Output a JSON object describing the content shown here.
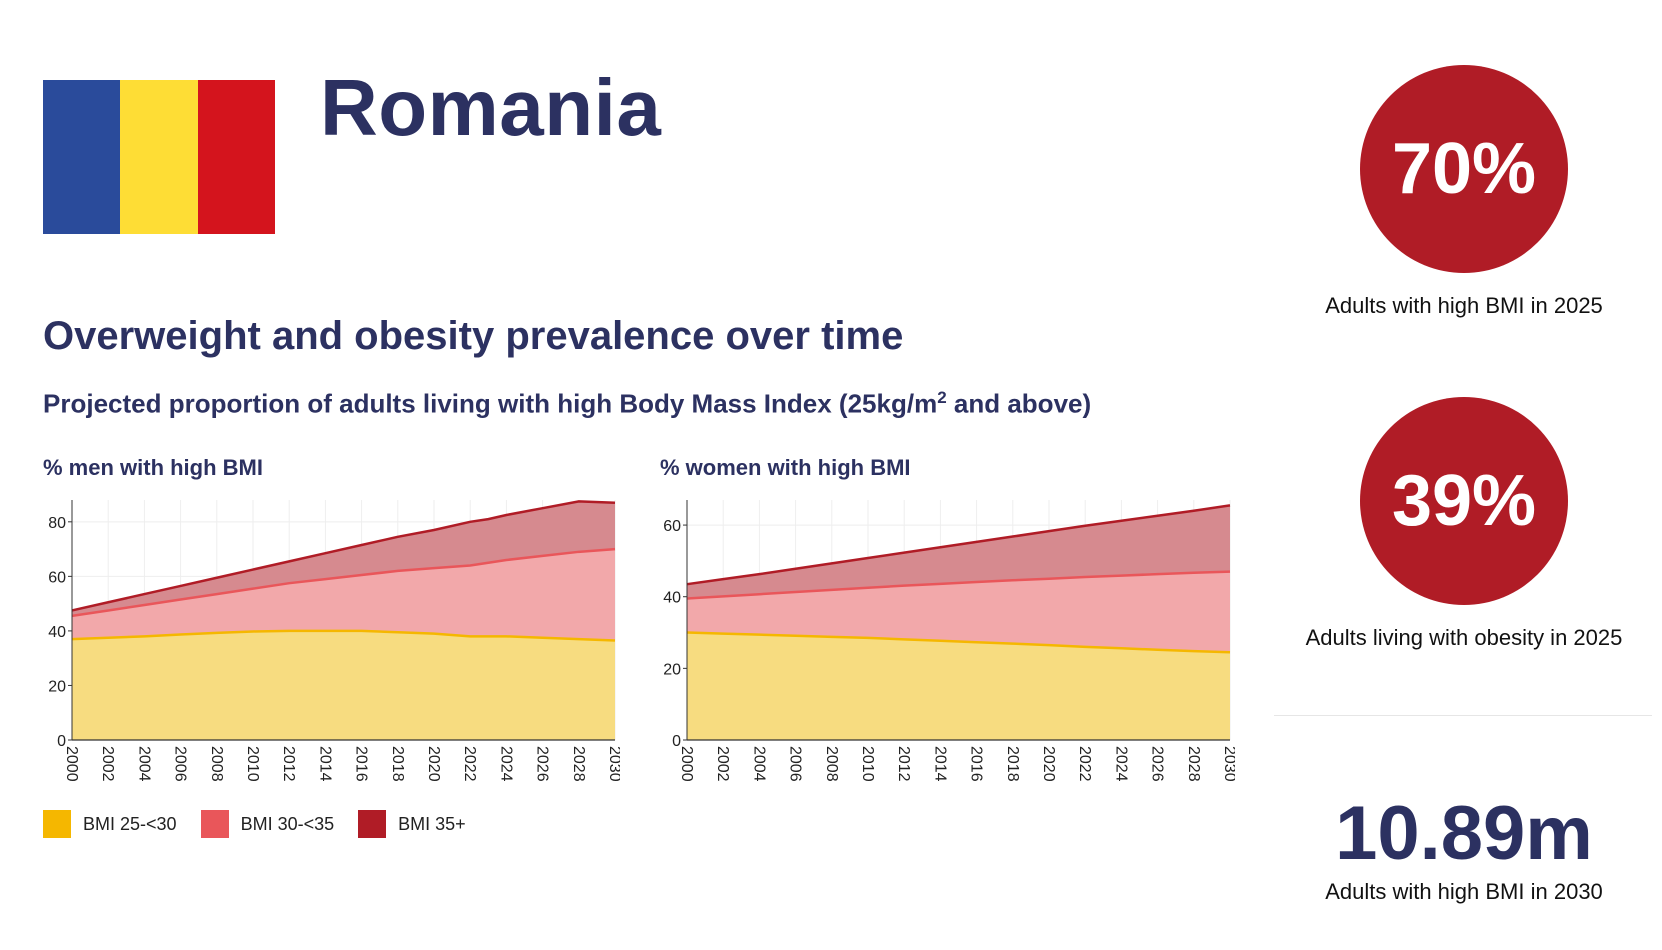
{
  "country": "Romania",
  "flag_colors": [
    "#2a4b9b",
    "#fedd35",
    "#d4141d"
  ],
  "section_title": "Overweight and obesity prevalence over time",
  "subtitle_before_sup": "Projected proportion of adults living with high Body Mass Index (25kg/m",
  "subtitle_sup": "2",
  "subtitle_after_sup": " and above)",
  "legend": [
    {
      "label": "BMI 25-<30",
      "color": "#f5b700"
    },
    {
      "label": "BMI 30-<35",
      "color": "#e9565a"
    },
    {
      "label": "BMI 35+",
      "color": "#b01c26"
    }
  ],
  "stats": [
    {
      "value": "70%",
      "caption": "Adults with high BMI in 2025",
      "color": "#b01c26"
    },
    {
      "value": "39%",
      "caption": "Adults living with obesity in 2025",
      "color": "#b01c26"
    },
    {
      "value": "10.89m",
      "caption": "Adults with high BMI in 2030"
    }
  ],
  "chart_data": [
    {
      "type": "area",
      "title": "% men with high BMI",
      "x": [
        2000,
        2002,
        2004,
        2006,
        2008,
        2010,
        2012,
        2014,
        2016,
        2018,
        2020,
        2022,
        2023,
        2024,
        2026,
        2028,
        2030
      ],
      "xticks": [
        "2000",
        "2002",
        "2004",
        "2006",
        "2008",
        "2010",
        "2012",
        "2014",
        "2016",
        "2018",
        "2020",
        "2022",
        "2024",
        "2026",
        "2028",
        "2030"
      ],
      "ylim": [
        0,
        88
      ],
      "yticks": [
        0,
        20,
        40,
        60,
        80
      ],
      "stacked_series": [
        {
          "name": "BMI 25-<30",
          "values": [
            37,
            37.5,
            38,
            38.7,
            39.3,
            39.8,
            40,
            40,
            40,
            39.5,
            39,
            38,
            38,
            38,
            37.5,
            37,
            36.5
          ]
        },
        {
          "name": "BMI 30-<35",
          "values": [
            45.5,
            47.5,
            49.5,
            51.5,
            53.5,
            55.5,
            57.5,
            59,
            60.5,
            62,
            63,
            64,
            65,
            66,
            67.5,
            69,
            70
          ]
        },
        {
          "name": "BMI 35+",
          "values": [
            47.5,
            50.5,
            53.5,
            56.5,
            59.5,
            62.5,
            65.5,
            68.5,
            71.5,
            74.5,
            77,
            80,
            81,
            82.5,
            85,
            87.5,
            87
          ]
        }
      ]
    },
    {
      "type": "area",
      "title": "% women with high BMI",
      "x": [
        2000,
        2002,
        2004,
        2006,
        2008,
        2010,
        2012,
        2014,
        2016,
        2018,
        2020,
        2022,
        2024,
        2026,
        2028,
        2030
      ],
      "xticks": [
        "2000",
        "2002",
        "2004",
        "2006",
        "2008",
        "2010",
        "2012",
        "2014",
        "2016",
        "2018",
        "2020",
        "2022",
        "2024",
        "2026",
        "2028",
        "2030"
      ],
      "ylim": [
        0,
        67
      ],
      "yticks": [
        0,
        20,
        40,
        60
      ],
      "stacked_series": [
        {
          "name": "BMI 25-<30",
          "values": [
            30,
            29.7,
            29.4,
            29.1,
            28.8,
            28.5,
            28.1,
            27.7,
            27.3,
            26.9,
            26.5,
            26,
            25.6,
            25.2,
            24.8,
            24.5
          ]
        },
        {
          "name": "BMI 30-<35",
          "values": [
            39.5,
            40.1,
            40.7,
            41.3,
            41.9,
            42.5,
            43.1,
            43.6,
            44.1,
            44.6,
            45,
            45.5,
            45.9,
            46.3,
            46.7,
            47
          ]
        },
        {
          "name": "BMI 35+",
          "values": [
            43.5,
            44.9,
            46.3,
            47.8,
            49.3,
            50.8,
            52.3,
            53.8,
            55.3,
            56.8,
            58.3,
            59.8,
            61.2,
            62.6,
            64,
            65.5
          ]
        }
      ]
    }
  ]
}
